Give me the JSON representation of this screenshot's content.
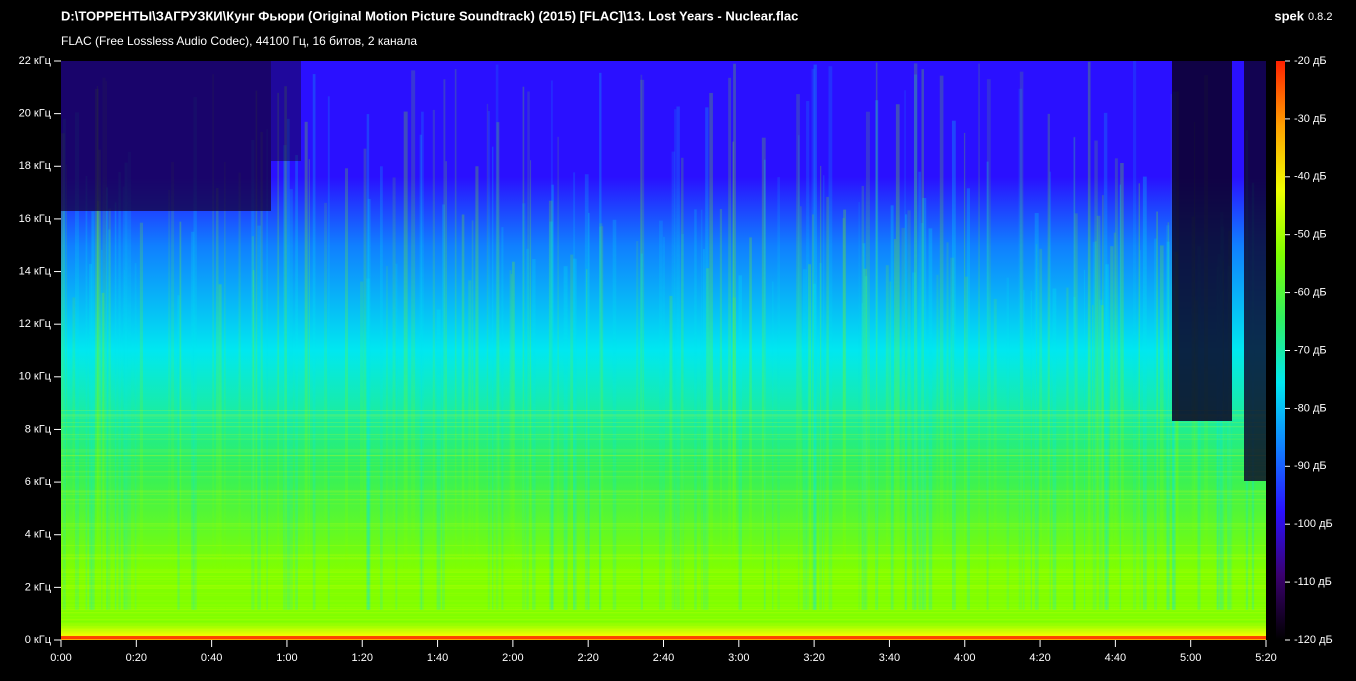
{
  "chart_data": {
    "type": "spectrogram",
    "title": "D:\\ТОРРЕНТЫ\\ЗАГРУЗКИ\\Кунг Фьюри (Original Motion Picture Soundtrack) (2015) [FLAC]\\13. Lost Years - Nuclear.flac",
    "subtitle": "FLAC (Free Lossless Audio Codec), 44100 Гц, 16 битов, 2 канала",
    "app_name": "spek",
    "app_version": "0.8.2",
    "xlim": [
      0,
      320
    ],
    "xticks": [
      {
        "value": 0,
        "label": "0:00"
      },
      {
        "value": 20,
        "label": "0:20"
      },
      {
        "value": 40,
        "label": "0:40"
      },
      {
        "value": 60,
        "label": "1:00"
      },
      {
        "value": 80,
        "label": "1:20"
      },
      {
        "value": 100,
        "label": "1:40"
      },
      {
        "value": 120,
        "label": "2:00"
      },
      {
        "value": 140,
        "label": "2:20"
      },
      {
        "value": 160,
        "label": "2:40"
      },
      {
        "value": 180,
        "label": "3:00"
      },
      {
        "value": 200,
        "label": "3:20"
      },
      {
        "value": 220,
        "label": "3:40"
      },
      {
        "value": 240,
        "label": "4:00"
      },
      {
        "value": 260,
        "label": "4:20"
      },
      {
        "value": 280,
        "label": "4:40"
      },
      {
        "value": 300,
        "label": "5:00"
      },
      {
        "value": 320,
        "label": "5:20"
      }
    ],
    "ylim": [
      0,
      22
    ],
    "yticks": [
      {
        "value": 0,
        "label": "0 кГц"
      },
      {
        "value": 2,
        "label": "2 кГц"
      },
      {
        "value": 4,
        "label": "4 кГц"
      },
      {
        "value": 6,
        "label": "6 кГц"
      },
      {
        "value": 8,
        "label": "8 кГц"
      },
      {
        "value": 10,
        "label": "10 кГц"
      },
      {
        "value": 12,
        "label": "12 кГц"
      },
      {
        "value": 14,
        "label": "14 кГц"
      },
      {
        "value": 16,
        "label": "16 кГц"
      },
      {
        "value": 18,
        "label": "18 кГц"
      },
      {
        "value": 20,
        "label": "20 кГц"
      },
      {
        "value": 22,
        "label": "22 кГц"
      }
    ],
    "clim": [
      -120,
      -20
    ],
    "cticks": [
      {
        "value": -20,
        "label": "-20 дБ"
      },
      {
        "value": -30,
        "label": "-30 дБ"
      },
      {
        "value": -40,
        "label": "-40 дБ"
      },
      {
        "value": -50,
        "label": "-50 дБ"
      },
      {
        "value": -60,
        "label": "-60 дБ"
      },
      {
        "value": -70,
        "label": "-70 дБ"
      },
      {
        "value": -80,
        "label": "-80 дБ"
      },
      {
        "value": -90,
        "label": "-90 дБ"
      },
      {
        "value": -100,
        "label": "-100 дБ"
      },
      {
        "value": -110,
        "label": "-110 дБ"
      },
      {
        "value": -120,
        "label": "-120 дБ"
      }
    ],
    "colormap": [
      "#000000",
      "#3a006e",
      "#2a10ff",
      "#1080ff",
      "#00e8f0",
      "#30f060",
      "#80ff00",
      "#f0ff00",
      "#ffa000",
      "#ff2000"
    ]
  }
}
